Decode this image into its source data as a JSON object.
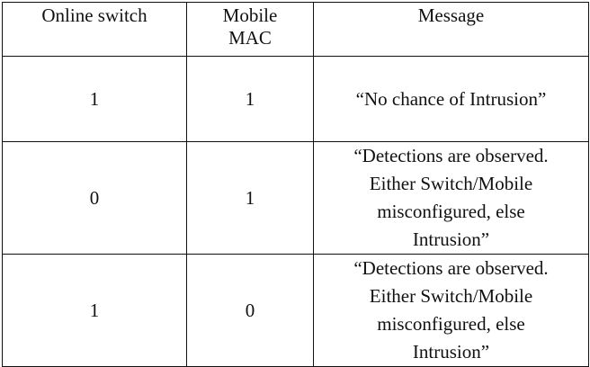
{
  "table": {
    "headers": [
      "Online switch",
      "Mobile MAC",
      "Message"
    ],
    "header_mobile_lines": [
      "Mobile",
      "MAC"
    ],
    "rows": [
      {
        "online_switch": "1",
        "mobile_mac": "1",
        "message_lines": [
          "“No chance of Intrusion”"
        ]
      },
      {
        "online_switch": "0",
        "mobile_mac": "1",
        "message_lines": [
          "“Detections are observed.",
          "Either Switch/Mobile",
          "misconfigured, else",
          "Intrusion”"
        ]
      },
      {
        "online_switch": "1",
        "mobile_mac": "0",
        "message_lines": [
          "“Detections are observed.",
          "Either Switch/Mobile",
          "misconfigured, else",
          "Intrusion”"
        ]
      }
    ]
  }
}
